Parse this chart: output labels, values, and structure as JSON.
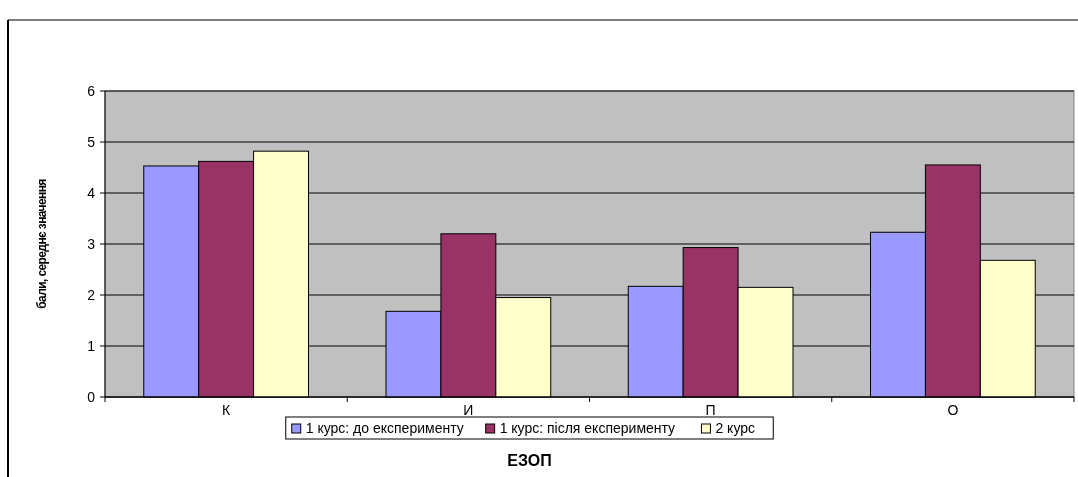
{
  "chart_data": {
    "type": "bar",
    "xlabel": "ЕЗОП",
    "ylabel": "бали, середнє значення",
    "categories": [
      "К",
      "И",
      "П",
      "О"
    ],
    "series": [
      {
        "name": "1 курс: до експерименту",
        "color": "#9999ff",
        "values": [
          4.53,
          1.68,
          2.17,
          3.23
        ]
      },
      {
        "name": "1 курс: після експерименту",
        "color": "#993366",
        "values": [
          4.62,
          3.2,
          2.93,
          4.55
        ]
      },
      {
        "name": "2 курс",
        "color": "#ffffcc",
        "values": [
          4.82,
          1.95,
          2.15,
          2.68
        ]
      }
    ],
    "ylim": [
      0,
      6
    ],
    "yticks": [
      0,
      1,
      2,
      3,
      4,
      5,
      6
    ],
    "grid": "y",
    "legend": "bottom"
  }
}
